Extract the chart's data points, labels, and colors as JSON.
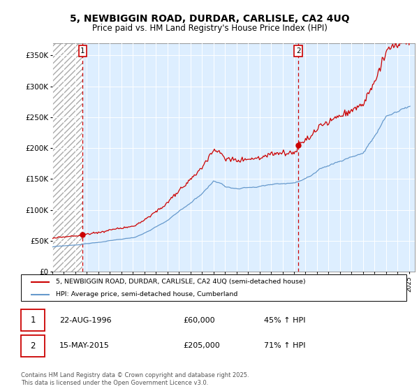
{
  "title1": "5, NEWBIGGIN ROAD, DURDAR, CARLISLE, CA2 4UQ",
  "title2": "Price paid vs. HM Land Registry's House Price Index (HPI)",
  "ylabel_ticks": [
    "£0",
    "£50K",
    "£100K",
    "£150K",
    "£200K",
    "£250K",
    "£300K",
    "£350K"
  ],
  "ytick_values": [
    0,
    50000,
    100000,
    150000,
    200000,
    250000,
    300000,
    350000
  ],
  "ylim": [
    0,
    370000
  ],
  "sale1_date": "22-AUG-1996",
  "sale1_price": 60000,
  "sale1_hpi": "45% ↑ HPI",
  "sale1_year": 1996.64,
  "sale2_date": "15-MAY-2015",
  "sale2_price": 205000,
  "sale2_hpi": "71% ↑ HPI",
  "sale2_year": 2015.37,
  "xmin": 1994,
  "xmax": 2025.5,
  "legend_label1": "5, NEWBIGGIN ROAD, DURDAR, CARLISLE, CA2 4UQ (semi-detached house)",
  "legend_label2": "HPI: Average price, semi-detached house, Cumberland",
  "footnote": "Contains HM Land Registry data © Crown copyright and database right 2025.\nThis data is licensed under the Open Government Licence v3.0.",
  "line_color_red": "#cc0000",
  "line_color_blue": "#6699cc",
  "bg_color": "#ddeeff"
}
